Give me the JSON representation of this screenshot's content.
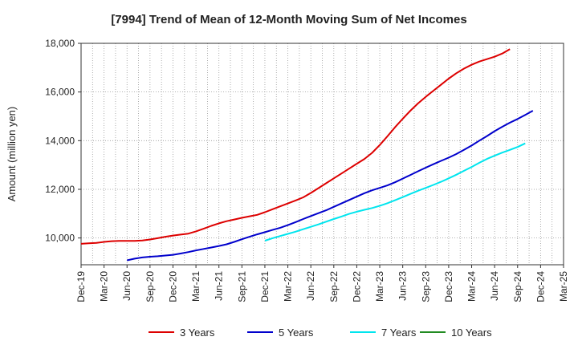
{
  "chart_data": {
    "type": "line",
    "title": "[7994]  Trend of Mean of 12-Month Moving Sum of Net Incomes",
    "ylabel": "Amount (million yen)",
    "xlabel": "",
    "ylim": [
      8900,
      18000
    ],
    "yticks": [
      10000,
      12000,
      14000,
      16000,
      18000
    ],
    "ytick_labels": [
      "10,000",
      "12,000",
      "14,000",
      "16,000",
      "18,000"
    ],
    "x_tick_labels": [
      "Dec-19",
      "Mar-20",
      "Jun-20",
      "Sep-20",
      "Dec-20",
      "Mar-21",
      "Jun-21",
      "Sep-21",
      "Dec-21",
      "Mar-22",
      "Jun-22",
      "Sep-22",
      "Dec-22",
      "Mar-23",
      "Jun-23",
      "Sep-23",
      "Dec-23",
      "Mar-24",
      "Jun-24",
      "Sep-24",
      "Dec-24",
      "Mar-25"
    ],
    "grid": true,
    "legend_position": "bottom",
    "series": [
      {
        "name": "3 Years",
        "color": "#dd0000",
        "start_index": 0,
        "values": [
          9760,
          9780,
          9800,
          9840,
          9870,
          9880,
          9880,
          9880,
          9900,
          9940,
          9990,
          10050,
          10100,
          10140,
          10180,
          10270,
          10380,
          10500,
          10600,
          10690,
          10760,
          10830,
          10890,
          10950,
          11060,
          11180,
          11300,
          11420,
          11540,
          11670,
          11850,
          12050,
          12250,
          12450,
          12650,
          12850,
          13050,
          13250,
          13500,
          13820,
          14180,
          14550,
          14900,
          15230,
          15530,
          15800,
          16050,
          16300,
          16550,
          16770,
          16960,
          17120,
          17250,
          17350,
          17450,
          17580,
          17760
        ]
      },
      {
        "name": "5 Years",
        "color": "#0000cc",
        "start_index": 6,
        "values": [
          9080,
          9150,
          9200,
          9230,
          9250,
          9280,
          9310,
          9360,
          9420,
          9490,
          9550,
          9610,
          9670,
          9740,
          9840,
          9950,
          10050,
          10150,
          10240,
          10330,
          10420,
          10530,
          10650,
          10780,
          10900,
          11020,
          11140,
          11280,
          11420,
          11560,
          11700,
          11840,
          11960,
          12060,
          12160,
          12290,
          12440,
          12590,
          12740,
          12890,
          13030,
          13170,
          13300,
          13450,
          13620,
          13800,
          14000,
          14190,
          14390,
          14570,
          14740,
          14890,
          15060,
          15230
        ]
      },
      {
        "name": "7 Years",
        "color": "#00e5ee",
        "start_index": 24,
        "values": [
          9890,
          9990,
          10080,
          10170,
          10260,
          10360,
          10460,
          10560,
          10670,
          10780,
          10880,
          10990,
          11080,
          11160,
          11230,
          11320,
          11430,
          11550,
          11680,
          11810,
          11940,
          12060,
          12180,
          12310,
          12450,
          12600,
          12760,
          12920,
          13090,
          13250,
          13380,
          13510,
          13620,
          13740,
          13890
        ]
      },
      {
        "name": "10 Years",
        "color": "#228b22",
        "start_index": 0,
        "values": []
      }
    ]
  }
}
